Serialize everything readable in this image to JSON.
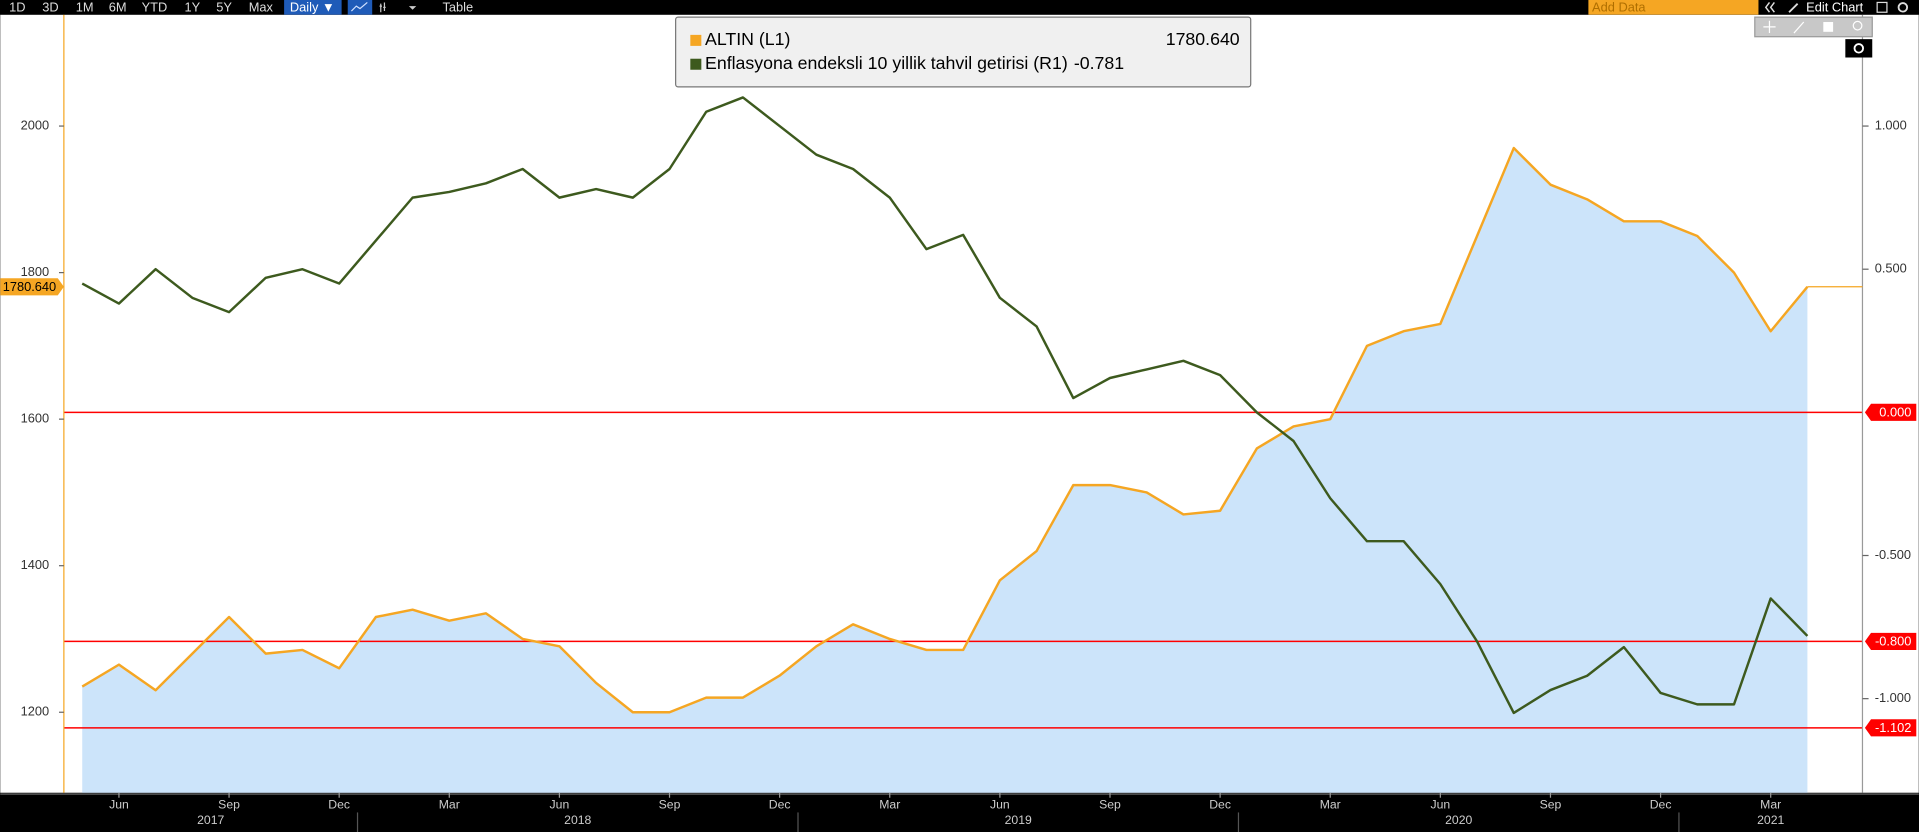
{
  "toolbar": {
    "buttons": [
      "1D",
      "3D",
      "1M",
      "6M",
      "YTD",
      "1Y",
      "5Y",
      "Max"
    ],
    "frequency": "Daily ▼",
    "table": "Table",
    "add_data": "Add Data",
    "edit_chart": "Edit Chart"
  },
  "chart_data": {
    "type": "line",
    "x": [
      "2017-05",
      "2017-06",
      "2017-07",
      "2017-08",
      "2017-09",
      "2017-10",
      "2017-11",
      "2017-12",
      "2018-01",
      "2018-02",
      "2018-03",
      "2018-04",
      "2018-05",
      "2018-06",
      "2018-07",
      "2018-08",
      "2018-09",
      "2018-10",
      "2018-11",
      "2018-12",
      "2019-01",
      "2019-02",
      "2019-03",
      "2019-04",
      "2019-05",
      "2019-06",
      "2019-07",
      "2019-08",
      "2019-09",
      "2019-10",
      "2019-11",
      "2019-12",
      "2020-01",
      "2020-02",
      "2020-03",
      "2020-04",
      "2020-05",
      "2020-06",
      "2020-07",
      "2020-08",
      "2020-09",
      "2020-10",
      "2020-11",
      "2020-12",
      "2021-01",
      "2021-02",
      "2021-03",
      "2021-04"
    ],
    "xlim": [
      "2017-05",
      "2021-05"
    ],
    "xticks": [
      {
        "value": "2017-06",
        "label": "Jun"
      },
      {
        "value": "2017-09",
        "label": "Sep"
      },
      {
        "value": "2017-12",
        "label": "Dec"
      },
      {
        "value": "2018-03",
        "label": "Mar"
      },
      {
        "value": "2018-06",
        "label": "Jun"
      },
      {
        "value": "2018-09",
        "label": "Sep"
      },
      {
        "value": "2018-12",
        "label": "Dec"
      },
      {
        "value": "2019-03",
        "label": "Mar"
      },
      {
        "value": "2019-06",
        "label": "Jun"
      },
      {
        "value": "2019-09",
        "label": "Sep"
      },
      {
        "value": "2019-12",
        "label": "Dec"
      },
      {
        "value": "2020-03",
        "label": "Mar"
      },
      {
        "value": "2020-06",
        "label": "Jun"
      },
      {
        "value": "2020-09",
        "label": "Sep"
      },
      {
        "value": "2020-12",
        "label": "Dec"
      },
      {
        "value": "2021-03",
        "label": "Mar"
      }
    ],
    "years": [
      2017,
      2018,
      2019,
      2020,
      2021
    ],
    "ylim": [
      1090,
      2152
    ],
    "yticks": [
      1200,
      1400,
      1600,
      1800,
      2000
    ],
    "y2lim": [
      -1.329,
      1.389
    ],
    "y2ticks": [
      {
        "value": -1,
        "label": "-1.000"
      },
      {
        "value": -0.5,
        "label": "-0.500"
      },
      {
        "value": 0.5,
        "label": "0.500"
      },
      {
        "value": 1,
        "label": "1.000"
      }
    ],
    "hlines": [
      {
        "value": 0,
        "label": "0.000",
        "color": "#ff0000"
      },
      {
        "value": -0.8,
        "label": "-0.800",
        "color": "#ff0000"
      },
      {
        "value": -1.102,
        "label": "-1.102",
        "color": "#ff0000"
      }
    ],
    "series": [
      {
        "name": "ALTIN (L1)",
        "color": "#f5a623",
        "area_color": "#cce4fa",
        "area": true,
        "axis": "y",
        "legend_value": "1780.640",
        "values": [
          1235,
          1265,
          1230,
          1280,
          1330,
          1280,
          1285,
          1260,
          1330,
          1340,
          1325,
          1335,
          1300,
          1290,
          1240,
          1200,
          1200,
          1220,
          1220,
          1250,
          1290,
          1320,
          1300,
          1285,
          1285,
          1380,
          1420,
          1510,
          1510,
          1500,
          1470,
          1475,
          1560,
          1590,
          1600,
          1700,
          1720,
          1730,
          1850,
          1970,
          1920,
          1900,
          1870,
          1870,
          1850,
          1800,
          1720,
          1780.64
        ]
      },
      {
        "name": "Enflasyona endeksli 10 yillik tahvil getirisi (R1)",
        "color": "#3d5a1e",
        "area": false,
        "axis": "y2",
        "legend_value": "-0.781",
        "values": [
          0.45,
          0.38,
          0.5,
          0.4,
          0.35,
          0.47,
          0.5,
          0.45,
          0.6,
          0.75,
          0.77,
          0.8,
          0.85,
          0.75,
          0.78,
          0.75,
          0.85,
          1.05,
          1.1,
          1.0,
          0.9,
          0.85,
          0.75,
          0.57,
          0.62,
          0.4,
          0.3,
          0.05,
          0.12,
          0.15,
          0.18,
          0.13,
          0.0,
          -0.1,
          -0.3,
          -0.45,
          -0.45,
          -0.6,
          -0.8,
          -1.05,
          -0.97,
          -0.92,
          -0.82,
          -0.98,
          -1.02,
          -1.02,
          -0.65,
          -0.781
        ]
      }
    ]
  }
}
